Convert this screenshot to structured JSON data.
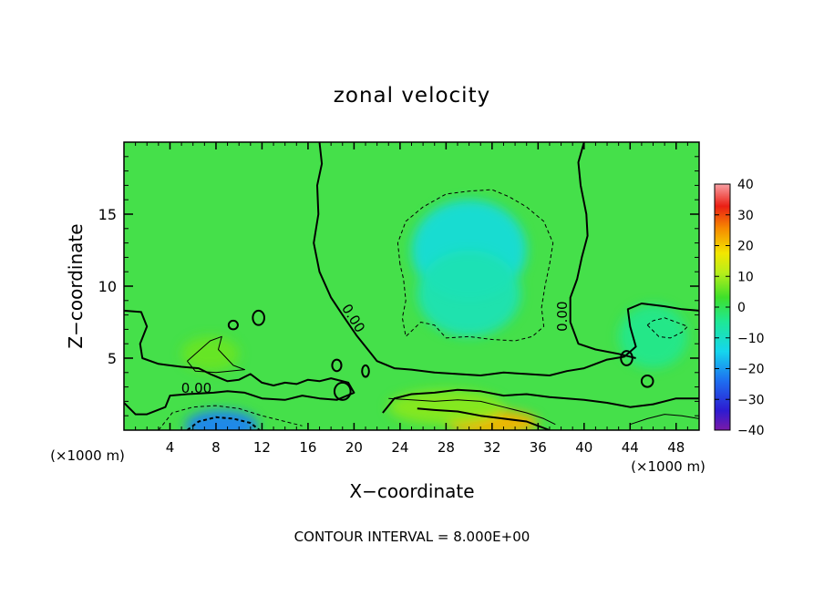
{
  "chart_data": {
    "type": "heatmap",
    "title": "zonal velocity",
    "xlabel": "X−coordinate",
    "ylabel": "Z−coordinate",
    "x_unit_left": "(×1000 m)",
    "x_unit_right": "(×1000 m)",
    "xlim": [
      0,
      50
    ],
    "ylim": [
      0,
      20
    ],
    "x_ticks": [
      4,
      8,
      12,
      16,
      20,
      24,
      28,
      32,
      36,
      40,
      44,
      48
    ],
    "y_ticks": [
      5,
      10,
      15
    ],
    "contour_interval_text": "CONTOUR INTERVAL = 8.000E+00",
    "contour_labels": [
      {
        "text": "0.00",
        "x": 6.3,
        "y": 2.6,
        "angle": 0
      },
      {
        "text": "0.00",
        "x": 19.6,
        "y": 7.6,
        "angle": 58
      },
      {
        "text": "0.00",
        "x": 38.5,
        "y": 7.9,
        "angle": -90
      }
    ],
    "colorbar": {
      "min": -40,
      "max": 40,
      "ticks": [
        40,
        30,
        20,
        10,
        0,
        -10,
        -20,
        -30,
        -40
      ],
      "tick_labels": [
        "40",
        "30",
        "20",
        "10",
        "0",
        "−10",
        "−20",
        "−30",
        "−40"
      ]
    },
    "field_features": [
      {
        "x": 30,
        "y": 12.5,
        "value": -12,
        "sx": 5,
        "sy": 3.5
      },
      {
        "x": 30,
        "y": 9.5,
        "value": -8,
        "sx": 4.5,
        "sy": 3
      },
      {
        "x": 8.5,
        "y": 0.3,
        "value": -22,
        "sx": 3.2,
        "sy": 1.1
      },
      {
        "x": 32,
        "y": 0.5,
        "value": 22,
        "sx": 4,
        "sy": 0.9
      },
      {
        "x": 28,
        "y": 1.6,
        "value": 8,
        "sx": 5,
        "sy": 1.2
      },
      {
        "x": 7.5,
        "y": 5.3,
        "value": 6,
        "sx": 2.5,
        "sy": 1.2
      },
      {
        "x": 46,
        "y": 6.5,
        "value": -4,
        "sx": 3,
        "sy": 2.2
      }
    ]
  }
}
